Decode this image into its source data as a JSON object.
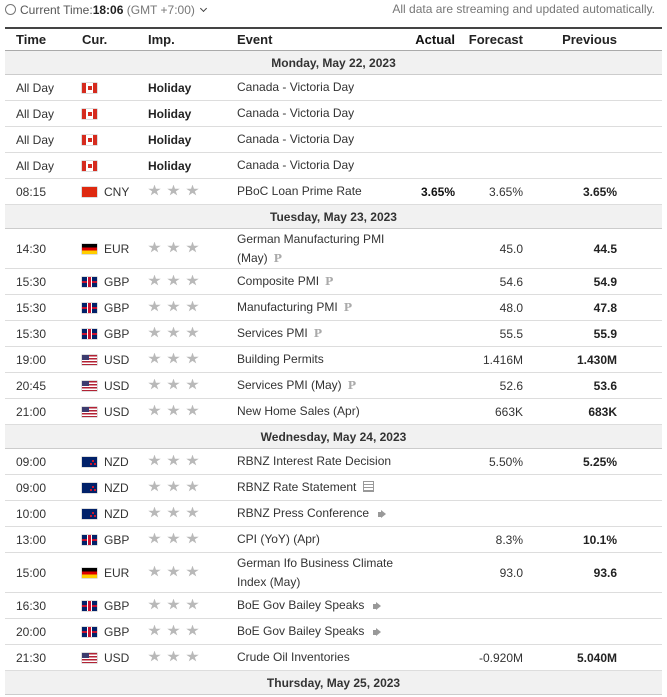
{
  "top_bar": {
    "time_label": "Current Time:",
    "time": "18:06",
    "timezone": "(GMT +7:00)",
    "notice": "All data are streaming and updated automatically."
  },
  "table": {
    "headers": [
      "Time",
      "Cur.",
      "Imp.",
      "Event",
      "Actual",
      "Forecast",
      "Previous"
    ],
    "days": [
      {
        "date": "Monday, May 22, 2023",
        "events": [
          {
            "time": "All Day",
            "importance": "Holiday",
            "event": "Canada - Victoria Day"
          },
          {
            "time": "All Day",
            "importance": "Holiday",
            "event": "Canada - Victoria Day"
          },
          {
            "time": "All Day",
            "importance": "Holiday",
            "event": "Canada - Victoria Day"
          },
          {
            "time": "All Day",
            "importance": "Holiday",
            "event": "Canada - Victoria Day"
          },
          {
            "time": "08:15",
            "currency": "CNY",
            "event": "PBoC Loan Prime Rate",
            "actual": "3.65%",
            "forecast": "3.65%",
            "previous": "3.65%"
          }
        ]
      },
      {
        "date": "Tuesday, May 23, 2023",
        "events": [
          {
            "time": "14:30",
            "currency": "EUR",
            "event": "German Manufacturing PMI (May)",
            "marker": "P",
            "forecast": "45.0",
            "previous": "44.5"
          },
          {
            "time": "15:30",
            "currency": "GBP",
            "event": "Composite PMI",
            "marker": "P",
            "forecast": "54.6",
            "previous": "54.9"
          },
          {
            "time": "15:30",
            "currency": "GBP",
            "event": "Manufacturing PMI",
            "marker": "P",
            "forecast": "48.0",
            "previous": "47.8"
          },
          {
            "time": "15:30",
            "currency": "GBP",
            "event": "Services PMI",
            "marker": "P",
            "forecast": "55.5",
            "previous": "55.9"
          },
          {
            "time": "19:00",
            "currency": "USD",
            "event": "Building Permits",
            "forecast": "1.416M",
            "previous": "1.430M"
          },
          {
            "time": "20:45",
            "currency": "USD",
            "event": "Services PMI (May)",
            "marker": "P",
            "forecast": "52.6",
            "previous": "53.6"
          },
          {
            "time": "21:00",
            "currency": "USD",
            "event": "New Home Sales (Apr)",
            "forecast": "663K",
            "previous": "683K"
          }
        ]
      },
      {
        "date": "Wednesday, May 24, 2023",
        "events": [
          {
            "time": "09:00",
            "currency": "NZD",
            "event": "RBNZ Interest Rate Decision",
            "forecast": "5.50%",
            "previous": "5.25%"
          },
          {
            "time": "09:00",
            "currency": "NZD",
            "event": "RBNZ Rate Statement"
          },
          {
            "time": "10:00",
            "currency": "NZD",
            "event": "RBNZ Press Conference"
          },
          {
            "time": "13:00",
            "currency": "GBP",
            "event": "CPI (YoY) (Apr)",
            "forecast": "8.3%",
            "previous": "10.1%"
          },
          {
            "time": "15:00",
            "currency": "EUR",
            "event": "German Ifo Business Climate Index (May)",
            "forecast": "93.0",
            "previous": "93.6"
          },
          {
            "time": "16:30",
            "currency": "GBP",
            "event": "BoE Gov Bailey Speaks"
          },
          {
            "time": "20:00",
            "currency": "GBP",
            "event": "BoE Gov Bailey Speaks"
          },
          {
            "time": "21:30",
            "currency": "USD",
            "event": "Crude Oil Inventories",
            "forecast": "-0.920M",
            "previous": "5.040M"
          }
        ]
      },
      {
        "date": "Thursday, May 25, 2023"
      }
    ]
  }
}
